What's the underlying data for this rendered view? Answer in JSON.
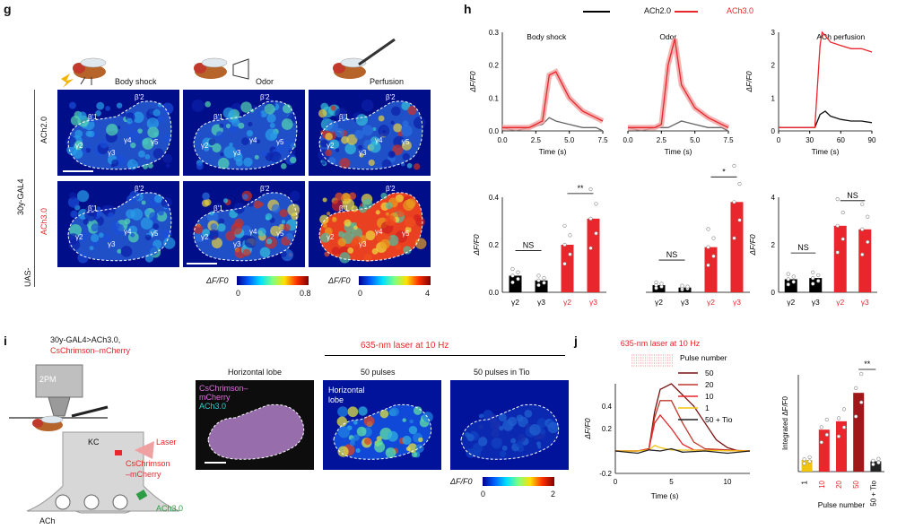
{
  "panels": {
    "g": "g",
    "h": "h",
    "i": "i",
    "j": "j"
  },
  "g": {
    "stimuli": [
      "Body shock",
      "Odor",
      "Perfusion"
    ],
    "side_label": "30y-GAL4",
    "uas_label": "UAS-",
    "row_labels": [
      "ACh2.0",
      "ACh3.0"
    ],
    "row_label_colors": [
      "#000000",
      "#e8262b"
    ],
    "roi_labels_top": [
      "β'1",
      "β'2",
      "γ2",
      "γ3",
      "γ4",
      "γ5"
    ],
    "roi_labels_bottom": [
      "β'1",
      "β'2",
      "γ2",
      "γ3",
      "γ4",
      "γ5"
    ],
    "colorbar1": {
      "label": "ΔF/F0",
      "min": "0",
      "max": "0.8"
    },
    "colorbar2": {
      "label": "ΔF/F0",
      "min": "0",
      "max": "4"
    }
  },
  "h": {
    "legend": [
      {
        "name": "ACh2.0",
        "color": "#000000"
      },
      {
        "name": "ACh3.0",
        "color": "#e8262b"
      }
    ],
    "colors": {
      "ach2": "#666666",
      "ach3": "#e8262b",
      "ach3_fill": "#f2a0a0"
    }
  },
  "chart_data": [
    {
      "type": "line",
      "annotation": "Body shock",
      "xlabel": "Time (s)",
      "ylabel": "ΔF/F0",
      "xlim": [
        0,
        7.5
      ],
      "ylim": [
        0,
        0.3
      ],
      "xticks": [
        "0.0",
        "2.5",
        "5.0",
        "7.5"
      ],
      "yticks": [
        "0.0",
        "0.1",
        "0.2",
        "0.3"
      ],
      "series": [
        {
          "name": "ACh2.0",
          "x": [
            0,
            1,
            2,
            3,
            3.5,
            4,
            5,
            6,
            7,
            7.5
          ],
          "y": [
            0.01,
            0.0,
            0.01,
            0.02,
            0.04,
            0.03,
            0.02,
            0.01,
            0.01,
            0.0
          ]
        },
        {
          "name": "ACh3.0",
          "x": [
            0,
            1,
            2,
            3,
            3.5,
            4,
            4.5,
            5,
            6,
            7,
            7.5
          ],
          "y": [
            0.01,
            0.01,
            0.01,
            0.03,
            0.17,
            0.18,
            0.14,
            0.1,
            0.06,
            0.04,
            0.03
          ]
        }
      ]
    },
    {
      "type": "line",
      "annotation": "Odor",
      "xlabel": "Time (s)",
      "ylabel": "",
      "xlim": [
        0,
        7.5
      ],
      "ylim": [
        0,
        0.3
      ],
      "xticks": [
        "0.0",
        "2.5",
        "5.0",
        "7.5"
      ],
      "yticks": [],
      "series": [
        {
          "name": "ACh2.0",
          "x": [
            0,
            1,
            2,
            3,
            4,
            5,
            6,
            7,
            7.5
          ],
          "y": [
            0.01,
            0.0,
            0.01,
            0.01,
            0.03,
            0.02,
            0.01,
            0.01,
            0.0
          ]
        },
        {
          "name": "ACh3.0",
          "x": [
            0,
            1,
            2,
            2.5,
            3,
            3.5,
            4,
            5,
            6,
            7,
            7.5
          ],
          "y": [
            0.01,
            0.01,
            0.01,
            0.02,
            0.2,
            0.28,
            0.14,
            0.07,
            0.04,
            0.02,
            0.01
          ]
        }
      ]
    },
    {
      "type": "line",
      "annotation": "ACh perfusion",
      "xlabel": "Time (s)",
      "ylabel": "ΔF/F0",
      "xlim": [
        0,
        90
      ],
      "ylim": [
        0,
        3
      ],
      "xticks": [
        "0",
        "30",
        "60",
        "90"
      ],
      "yticks": [
        "0",
        "1",
        "2",
        "3"
      ],
      "series": [
        {
          "name": "ACh2.0",
          "x": [
            0,
            20,
            35,
            40,
            45,
            50,
            60,
            70,
            80,
            90
          ],
          "y": [
            0.1,
            0.1,
            0.1,
            0.5,
            0.6,
            0.45,
            0.35,
            0.3,
            0.3,
            0.25
          ]
        },
        {
          "name": "ACh3.0",
          "x": [
            0,
            20,
            35,
            40,
            42,
            45,
            50,
            60,
            70,
            80,
            90
          ],
          "y": [
            0.1,
            0.1,
            0.1,
            2.6,
            3.0,
            2.9,
            2.7,
            2.6,
            2.5,
            2.5,
            2.4
          ]
        }
      ]
    },
    {
      "type": "bar",
      "ylabel": "ΔF/F0",
      "ylim": [
        0,
        0.4
      ],
      "yticks": [
        "0.0",
        "0.2",
        "0.4"
      ],
      "categories": [
        "γ2",
        "γ3",
        "γ2",
        "γ3"
      ],
      "values": [
        0.07,
        0.05,
        0.2,
        0.31
      ],
      "colors": [
        "#000000",
        "#000000",
        "#e8262b",
        "#e8262b"
      ],
      "significance": [
        "NS",
        "**"
      ]
    },
    {
      "type": "bar",
      "ylabel": "",
      "ylim": [
        0,
        0.4
      ],
      "categories": [
        "γ2",
        "γ3",
        "γ2",
        "γ3"
      ],
      "values": [
        0.03,
        0.02,
        0.19,
        0.38
      ],
      "colors": [
        "#000000",
        "#000000",
        "#e8262b",
        "#e8262b"
      ],
      "significance": [
        "NS",
        "*"
      ]
    },
    {
      "type": "bar",
      "ylabel": "ΔF/F0",
      "ylim": [
        0,
        4
      ],
      "yticks": [
        "0",
        "2",
        "4"
      ],
      "categories": [
        "γ2",
        "γ3",
        "γ2",
        "γ3"
      ],
      "values": [
        0.55,
        0.6,
        2.8,
        2.65
      ],
      "colors": [
        "#000000",
        "#000000",
        "#e8262b",
        "#e8262b"
      ],
      "significance": [
        "NS",
        "NS"
      ]
    },
    {
      "type": "line",
      "annotation": "635-nm laser at 10 Hz",
      "xlabel": "Time (s)",
      "ylabel": "ΔF/F0",
      "xlim": [
        0,
        12
      ],
      "ylim": [
        -0.2,
        0.6
      ],
      "xticks": [
        "0",
        "5",
        "10"
      ],
      "yticks": [
        "-0.2",
        "0.2",
        "0.4"
      ],
      "legend_title": "Pulse number",
      "series": [
        {
          "name": "50",
          "x": [
            0,
            2,
            3,
            3.5,
            4,
            5,
            6,
            7,
            8,
            9,
            10,
            11,
            12
          ],
          "y": [
            0,
            0,
            0.02,
            0.35,
            0.55,
            0.6,
            0.5,
            0.4,
            0.25,
            0.1,
            0.03,
            0,
            0
          ],
          "color": "#7a1010"
        },
        {
          "name": "20",
          "x": [
            0,
            2,
            3,
            3.5,
            4,
            5,
            6,
            7,
            8,
            12
          ],
          "y": [
            0,
            0,
            0.02,
            0.3,
            0.45,
            0.45,
            0.25,
            0.08,
            0.02,
            0
          ],
          "color": "#c0392b"
        },
        {
          "name": "10",
          "x": [
            0,
            2,
            3,
            3.5,
            4,
            5,
            6,
            7,
            12
          ],
          "y": [
            0,
            0,
            0.02,
            0.25,
            0.32,
            0.2,
            0.06,
            0.01,
            0
          ],
          "color": "#e8262b"
        },
        {
          "name": "1",
          "x": [
            0,
            2,
            3,
            3.5,
            4,
            5,
            12
          ],
          "y": [
            0,
            0,
            0.01,
            0.05,
            0.03,
            0.01,
            0
          ],
          "color": "#f1c40f"
        },
        {
          "name": "50 + Tio",
          "x": [
            0,
            2,
            3,
            4,
            5,
            6,
            8,
            10,
            12
          ],
          "y": [
            0,
            -0.02,
            0.01,
            0.0,
            0.02,
            -0.01,
            0.0,
            -0.02,
            0
          ],
          "color": "#222222"
        }
      ]
    },
    {
      "type": "bar",
      "ylabel": "Integrated ΔF/F0",
      "xlabel": "Pulse number",
      "categories": [
        "1",
        "10",
        "20",
        "50",
        "50 + Tio"
      ],
      "category_colors": [
        "#000000",
        "#e8262b",
        "#e8262b",
        "#e8262b",
        "#000000"
      ],
      "values": [
        1.8,
        6.5,
        7.8,
        12.2,
        1.6
      ],
      "colors": [
        "#f1c40f",
        "#e8262b",
        "#e8262b",
        "#a01818",
        "#222222"
      ],
      "ylim": [
        0,
        15
      ],
      "significance": [
        "**"
      ]
    }
  ],
  "i": {
    "genotype_line1": "30y-GAL4>ACh3.0,",
    "genotype_line2": "CsChrimson–mCherry",
    "microscope": "2PM",
    "kc": "KC",
    "laser": "Laser",
    "cschrimson": "CsChrimson",
    "mcherry": "–mCherry",
    "ach30": "ACh3.0",
    "ach": "ACh",
    "laser_title": "635-nm laser at 10 Hz",
    "image_titles": [
      "Horizontal lobe",
      "50 pulses",
      "50 pulses in Tio"
    ],
    "overlay_ch1": "CsChrimson–",
    "overlay_ch1b": "mCherry",
    "overlay_ch2": "ACh3.0",
    "inset_label": "Horizontal\nlobe",
    "colorbar": {
      "label": "ΔF/F0",
      "min": "0",
      "max": "2"
    }
  }
}
